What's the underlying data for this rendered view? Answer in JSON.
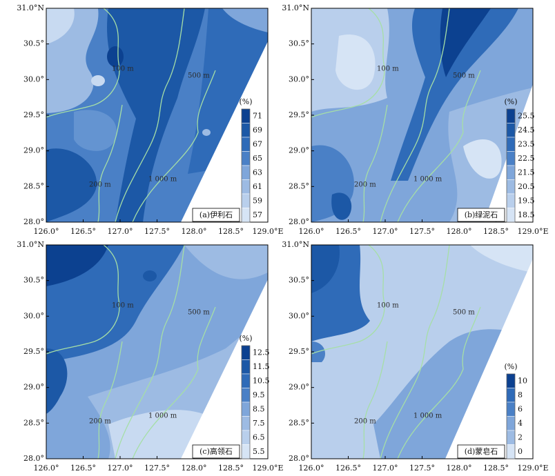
{
  "axes": {
    "x_labels": [
      "126.0°",
      "126.5°",
      "127.0°",
      "127.5°",
      "128.0°",
      "128.5°",
      "129.0°E"
    ],
    "y_labels": [
      "31.0°N",
      "30.5°",
      "30.0°",
      "29.5°",
      "29.0°",
      "28.5°",
      "28.0°"
    ]
  },
  "panels": [
    {
      "label": "(a)伊利石",
      "legend": {
        "unit": "(%)",
        "ticks": [
          "71",
          "69",
          "67",
          "65",
          "63",
          "61",
          "59",
          "57"
        ]
      },
      "isobaths": [
        "100 m",
        "500 m",
        "200 m",
        "1 000 m"
      ]
    },
    {
      "label": "(b)绿泥石",
      "legend": {
        "unit": "(%)",
        "ticks": [
          "25.5",
          "24.5",
          "23.5",
          "22.5",
          "21.5",
          "20.5",
          "19.5",
          "18.5"
        ]
      },
      "isobaths": [
        "100 m",
        "500 m",
        "200 m",
        "1 000 m"
      ]
    },
    {
      "label": "(c)高领石",
      "legend": {
        "unit": "(%)",
        "ticks": [
          "12.5",
          "11.5",
          "10.5",
          "9.5",
          "8.5",
          "7.5",
          "6.5",
          "5.5"
        ]
      },
      "isobaths": [
        "100 m",
        "500 m",
        "200 m",
        "1 000 m"
      ]
    },
    {
      "label": "(d)蒙皂石",
      "legend": {
        "unit": "(%)",
        "ticks": [
          "10",
          "8",
          "6",
          "4",
          "2",
          "0"
        ]
      },
      "isobaths": [
        "100 m",
        "500 m",
        "200 m",
        "1 000 m"
      ]
    }
  ]
}
